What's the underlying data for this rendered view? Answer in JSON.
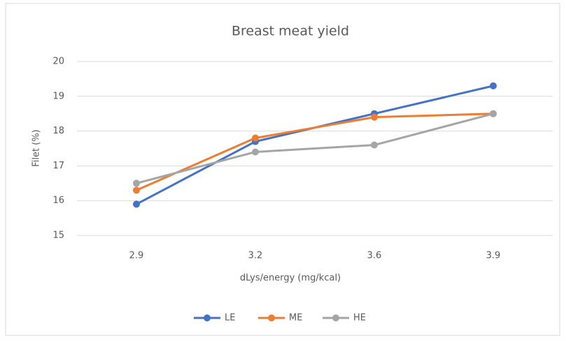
{
  "chart_data": {
    "type": "line",
    "title": "Breast meat yield",
    "x_label": "dLys/energy (mg/kcal)",
    "y_label": "Filet (%)",
    "categories": [
      "2.9",
      "3.2",
      "3.6",
      "3.9"
    ],
    "series": [
      {
        "name": "LE",
        "color": "#4472c4",
        "values": [
          15.9,
          17.7,
          18.5,
          19.3
        ]
      },
      {
        "name": "ME",
        "color": "#ed7d31",
        "values": [
          16.3,
          17.8,
          18.4,
          18.5
        ]
      },
      {
        "name": "HE",
        "color": "#a5a5a5",
        "values": [
          16.5,
          17.4,
          17.6,
          18.5
        ]
      }
    ],
    "ylim": [
      15,
      20
    ],
    "yticks": [
      15,
      16,
      17,
      18,
      19,
      20
    ],
    "grid": true,
    "legend": "bottom"
  }
}
